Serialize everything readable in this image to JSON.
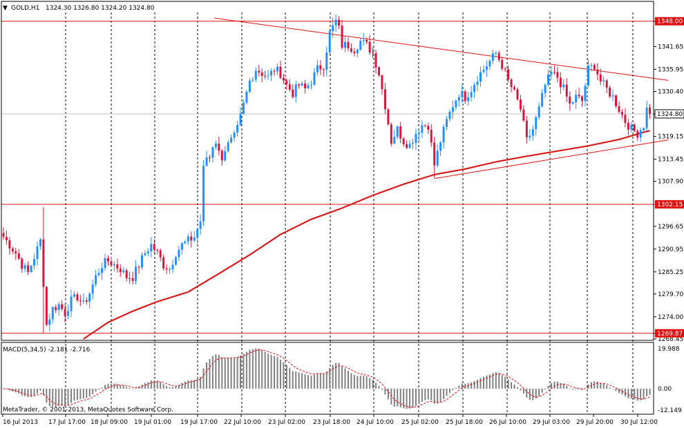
{
  "header": {
    "symbol": "GOLD,H1",
    "ohlc": "1324.30 1326.80 1324.20 1324.80"
  },
  "macd": {
    "label": "MACD(5,34,5) -2.181 -2.716",
    "ticks": [
      "19.988",
      "0.00",
      "-12.149"
    ]
  },
  "copyright": "MetaTrader, © 2001-2013, MetaQuotes Software Corp.",
  "colors": {
    "bull": "#1e90ff",
    "bear": "#dc143c",
    "level": "#e01010",
    "ma": "#d61a1a",
    "grid": "#000000",
    "current": "#c0c0c0",
    "macd_hist": "#808080",
    "macd_signal": "#e01010"
  },
  "chart_data": {
    "type": "candlestick",
    "price_ticks": [
      "1348.00",
      "1341.65",
      "1335.95",
      "1330.40",
      "1324.80",
      "1319.15",
      "1313.45",
      "1307.90",
      "1302.15",
      "1296.65",
      "1290.95",
      "1285.25",
      "1279.70",
      "1274.00",
      "1269.87",
      "1268.45"
    ],
    "ylim": [
      1268.45,
      1350.2
    ],
    "levels": [
      {
        "price": 1348.0,
        "label": "1348.00"
      },
      {
        "price": 1302.15,
        "label": "1302.15"
      },
      {
        "price": 1269.87,
        "label": "1269.87"
      }
    ],
    "current_price": {
      "price": 1324.8,
      "label": "1324.80"
    },
    "x_labels": [
      "16 Jul 2013",
      "17 Jul 17:00",
      "18 Jul 09:00",
      "19 Jul 01:00",
      "19 Jul 17:00",
      "22 Jul 10:00",
      "23 Jul 02:00",
      "23 Jul 18:00",
      "24 Jul 10:00",
      "25 Jul 02:00",
      "25 Jul 18:00",
      "26 Jul 10:00",
      "29 Jul 03:00",
      "29 Jul 20:00",
      "30 Jul 12:00"
    ],
    "trendlines": [
      {
        "from": [
          68.5,
          1348.8
        ],
        "to": [
          216,
          1333.2
        ]
      },
      {
        "from": [
          140,
          1308.6
        ],
        "to": [
          216,
          1318.3
        ]
      }
    ],
    "close_path": [
      [
        0,
        1294
      ],
      [
        2,
        1292
      ],
      [
        4,
        1290
      ],
      [
        6,
        1287
      ],
      [
        8,
        1285
      ],
      [
        10,
        1289
      ],
      [
        12,
        1293
      ],
      [
        14,
        1272
      ],
      [
        16,
        1276
      ],
      [
        18,
        1277
      ],
      [
        20,
        1275
      ],
      [
        22,
        1278
      ],
      [
        24,
        1279
      ],
      [
        26,
        1277
      ],
      [
        28,
        1280
      ],
      [
        30,
        1284
      ],
      [
        32,
        1287
      ],
      [
        34,
        1288
      ],
      [
        36,
        1287
      ],
      [
        38,
        1286
      ],
      [
        40,
        1284
      ],
      [
        42,
        1284
      ],
      [
        44,
        1287
      ],
      [
        46,
        1290
      ],
      [
        48,
        1292
      ],
      [
        50,
        1290
      ],
      [
        52,
        1287
      ],
      [
        54,
        1286
      ],
      [
        56,
        1290
      ],
      [
        58,
        1292
      ],
      [
        60,
        1293
      ],
      [
        62,
        1294
      ],
      [
        64,
        1298
      ],
      [
        65,
        1311
      ],
      [
        66,
        1314
      ],
      [
        67,
        1314
      ],
      [
        68,
        1317
      ],
      [
        69,
        1318
      ],
      [
        70,
        1315
      ],
      [
        71,
        1314
      ],
      [
        72,
        1316
      ],
      [
        73,
        1317
      ],
      [
        74,
        1318
      ],
      [
        75,
        1319
      ],
      [
        76,
        1321
      ],
      [
        78,
        1327
      ],
      [
        80,
        1333
      ],
      [
        82,
        1336
      ],
      [
        84,
        1335
      ],
      [
        86,
        1334
      ],
      [
        88,
        1336
      ],
      [
        90,
        1335
      ],
      [
        92,
        1332
      ],
      [
        94,
        1330
      ],
      [
        96,
        1332
      ],
      [
        98,
        1331
      ],
      [
        100,
        1333
      ],
      [
        102,
        1336
      ],
      [
        104,
        1337
      ],
      [
        106,
        1345
      ],
      [
        108,
        1348
      ],
      [
        109,
        1346
      ],
      [
        110,
        1342
      ],
      [
        112,
        1342
      ],
      [
        114,
        1341
      ],
      [
        116,
        1343
      ],
      [
        118,
        1342
      ],
      [
        120,
        1340
      ],
      [
        122,
        1335
      ],
      [
        124,
        1327
      ],
      [
        126,
        1318
      ],
      [
        128,
        1321
      ],
      [
        130,
        1318
      ],
      [
        132,
        1317
      ],
      [
        134,
        1320
      ],
      [
        136,
        1322
      ],
      [
        138,
        1322
      ],
      [
        140,
        1312
      ],
      [
        142,
        1318
      ],
      [
        144,
        1323
      ],
      [
        146,
        1327
      ],
      [
        148,
        1330
      ],
      [
        150,
        1329
      ],
      [
        152,
        1331
      ],
      [
        154,
        1334
      ],
      [
        156,
        1336
      ],
      [
        158,
        1338
      ],
      [
        160,
        1340
      ],
      [
        162,
        1337
      ],
      [
        164,
        1333
      ],
      [
        166,
        1330
      ],
      [
        168,
        1326
      ],
      [
        170,
        1318
      ],
      [
        172,
        1321
      ],
      [
        174,
        1326
      ],
      [
        176,
        1332
      ],
      [
        178,
        1335
      ],
      [
        180,
        1334
      ],
      [
        182,
        1331
      ],
      [
        184,
        1327
      ],
      [
        186,
        1329
      ],
      [
        188,
        1328
      ],
      [
        190,
        1336
      ],
      [
        192,
        1337
      ],
      [
        194,
        1333
      ],
      [
        196,
        1331
      ],
      [
        198,
        1329
      ],
      [
        200,
        1326
      ],
      [
        202,
        1323
      ],
      [
        204,
        1321
      ],
      [
        206,
        1320
      ],
      [
        208,
        1322
      ],
      [
        209,
        1326
      ],
      [
        210,
        1324.8
      ]
    ],
    "ma_path": [
      [
        26,
        1268.45
      ],
      [
        34,
        1272.6
      ],
      [
        42,
        1275.4
      ],
      [
        50,
        1277.8
      ],
      [
        60,
        1280.2
      ],
      [
        70,
        1284.8
      ],
      [
        80,
        1289.5
      ],
      [
        90,
        1294.6
      ],
      [
        100,
        1298.4
      ],
      [
        110,
        1301.2
      ],
      [
        120,
        1304.4
      ],
      [
        130,
        1307.2
      ],
      [
        140,
        1309.6
      ],
      [
        150,
        1311.0
      ],
      [
        160,
        1312.8
      ],
      [
        170,
        1314.2
      ],
      [
        180,
        1315.5
      ],
      [
        190,
        1316.8
      ],
      [
        200,
        1318.4
      ],
      [
        208,
        1320.2
      ],
      [
        210,
        1320.6
      ]
    ]
  }
}
